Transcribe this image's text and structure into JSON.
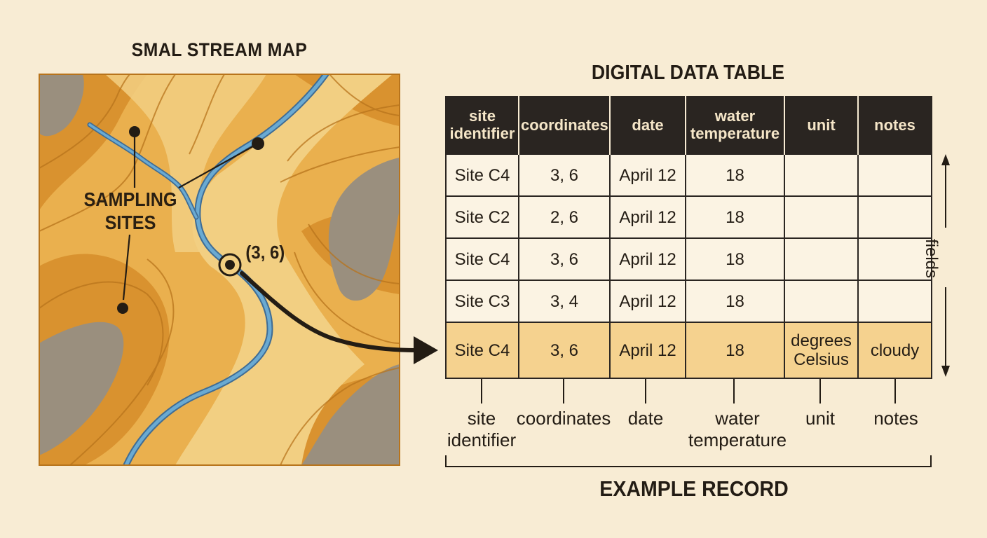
{
  "map": {
    "title": "SMAL STREAM MAP",
    "sampling_label": "SAMPLING SITES",
    "highlight_coord": "(3, 6)"
  },
  "table": {
    "title": "DIGITAL DATA TABLE",
    "headers": [
      "site identifier",
      "coordinates",
      "date",
      "water temperature",
      "unit",
      "notes"
    ],
    "rows": [
      [
        "Site C4",
        "3, 6",
        "April 12",
        "18",
        "",
        ""
      ],
      [
        "Site C2",
        "2, 6",
        "April 12",
        "18",
        "",
        ""
      ],
      [
        "Site C4",
        "3, 6",
        "April 12",
        "18",
        "",
        ""
      ],
      [
        "Site C3",
        "3, 4",
        "April 12",
        "18",
        "",
        ""
      ],
      [
        "Site C4",
        "3, 6",
        "April 12",
        "18",
        "degrees Celsius",
        "cloudy"
      ]
    ],
    "fields_label": "fields"
  },
  "captions": [
    "site identifier",
    "coordinates",
    "date",
    "water temperature",
    "unit",
    "notes"
  ],
  "example_record_label": "EXAMPLE RECORD",
  "colors": {
    "background": "#f8ecd4",
    "header_bg": "#2a2521",
    "highlight_row": "#f5d28f",
    "stream": "#5b9fc8",
    "terrain_light": "#f2cf82",
    "terrain_mid": "#eab04e",
    "terrain_dark": "#d9922f",
    "rock": "#9a8f7e"
  }
}
